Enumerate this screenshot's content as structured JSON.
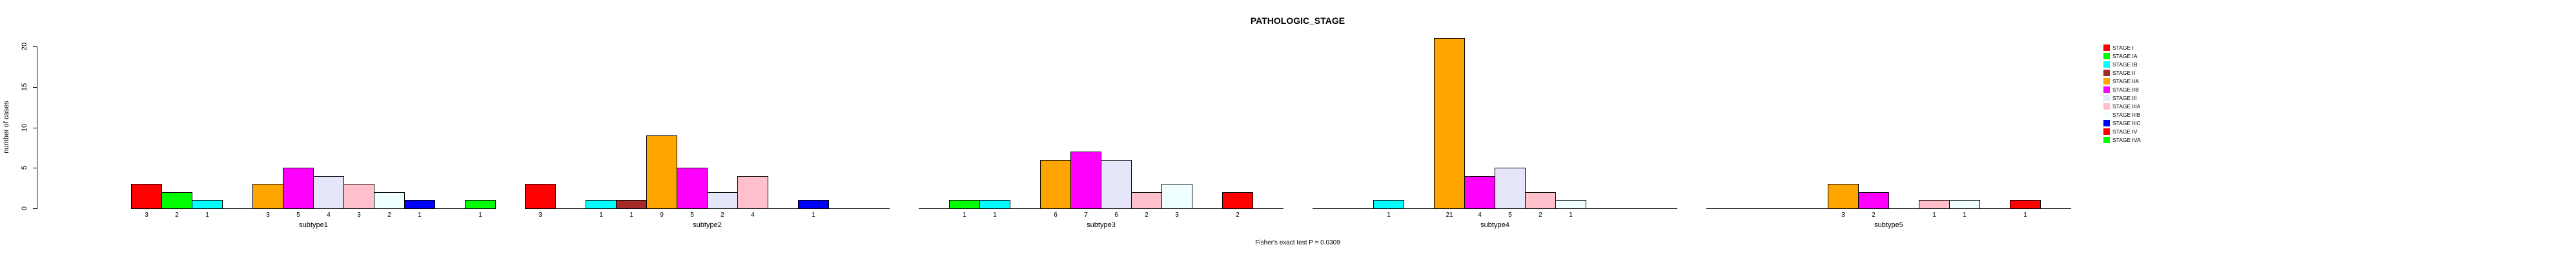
{
  "chart_data": {
    "type": "bar",
    "title": "PATHOLOGIC_STAGE",
    "ylabel": "number of cases",
    "xlabel": "",
    "ylim": [
      0,
      20
    ],
    "yticks": [
      0,
      5,
      10,
      15,
      20
    ],
    "grid": false,
    "legend_position": "right",
    "annotation": "Fisher's exact test P = 0.0309",
    "stage_labels": [
      "STAGE I",
      "STAGE IA",
      "STAGE IB",
      "STAGE II",
      "STAGE IIA",
      "STAGE IIB",
      "STAGE III",
      "STAGE IIIA",
      "STAGE IIIB",
      "STAGE IIIC",
      "STAGE IV",
      "STAGE IVA"
    ],
    "stage_colors": [
      "#FF0000",
      "#00FF00",
      "#00FFFF",
      "#A52A2A",
      "#FFA500",
      "#FF00FF",
      "#E6E6FA",
      "#FFC0CB",
      "#F0FFFF",
      "#0000FF",
      "#FF0000",
      "#00FF00"
    ],
    "groups": [
      {
        "label": "subtype1",
        "values": [
          3,
          2,
          1,
          0,
          3,
          5,
          4,
          3,
          2,
          1,
          0,
          1
        ]
      },
      {
        "label": "subtype2",
        "values": [
          3,
          0,
          1,
          1,
          9,
          5,
          2,
          4,
          0,
          1,
          0,
          0
        ]
      },
      {
        "label": "subtype3",
        "values": [
          0,
          1,
          1,
          0,
          6,
          7,
          6,
          2,
          3,
          0,
          2,
          0
        ]
      },
      {
        "label": "subtype4",
        "values": [
          0,
          0,
          1,
          0,
          21,
          4,
          5,
          2,
          1,
          0,
          0,
          0
        ]
      },
      {
        "label": "subtype5",
        "values": [
          0,
          0,
          0,
          0,
          3,
          2,
          0,
          1,
          1,
          0,
          1,
          0
        ]
      }
    ]
  }
}
